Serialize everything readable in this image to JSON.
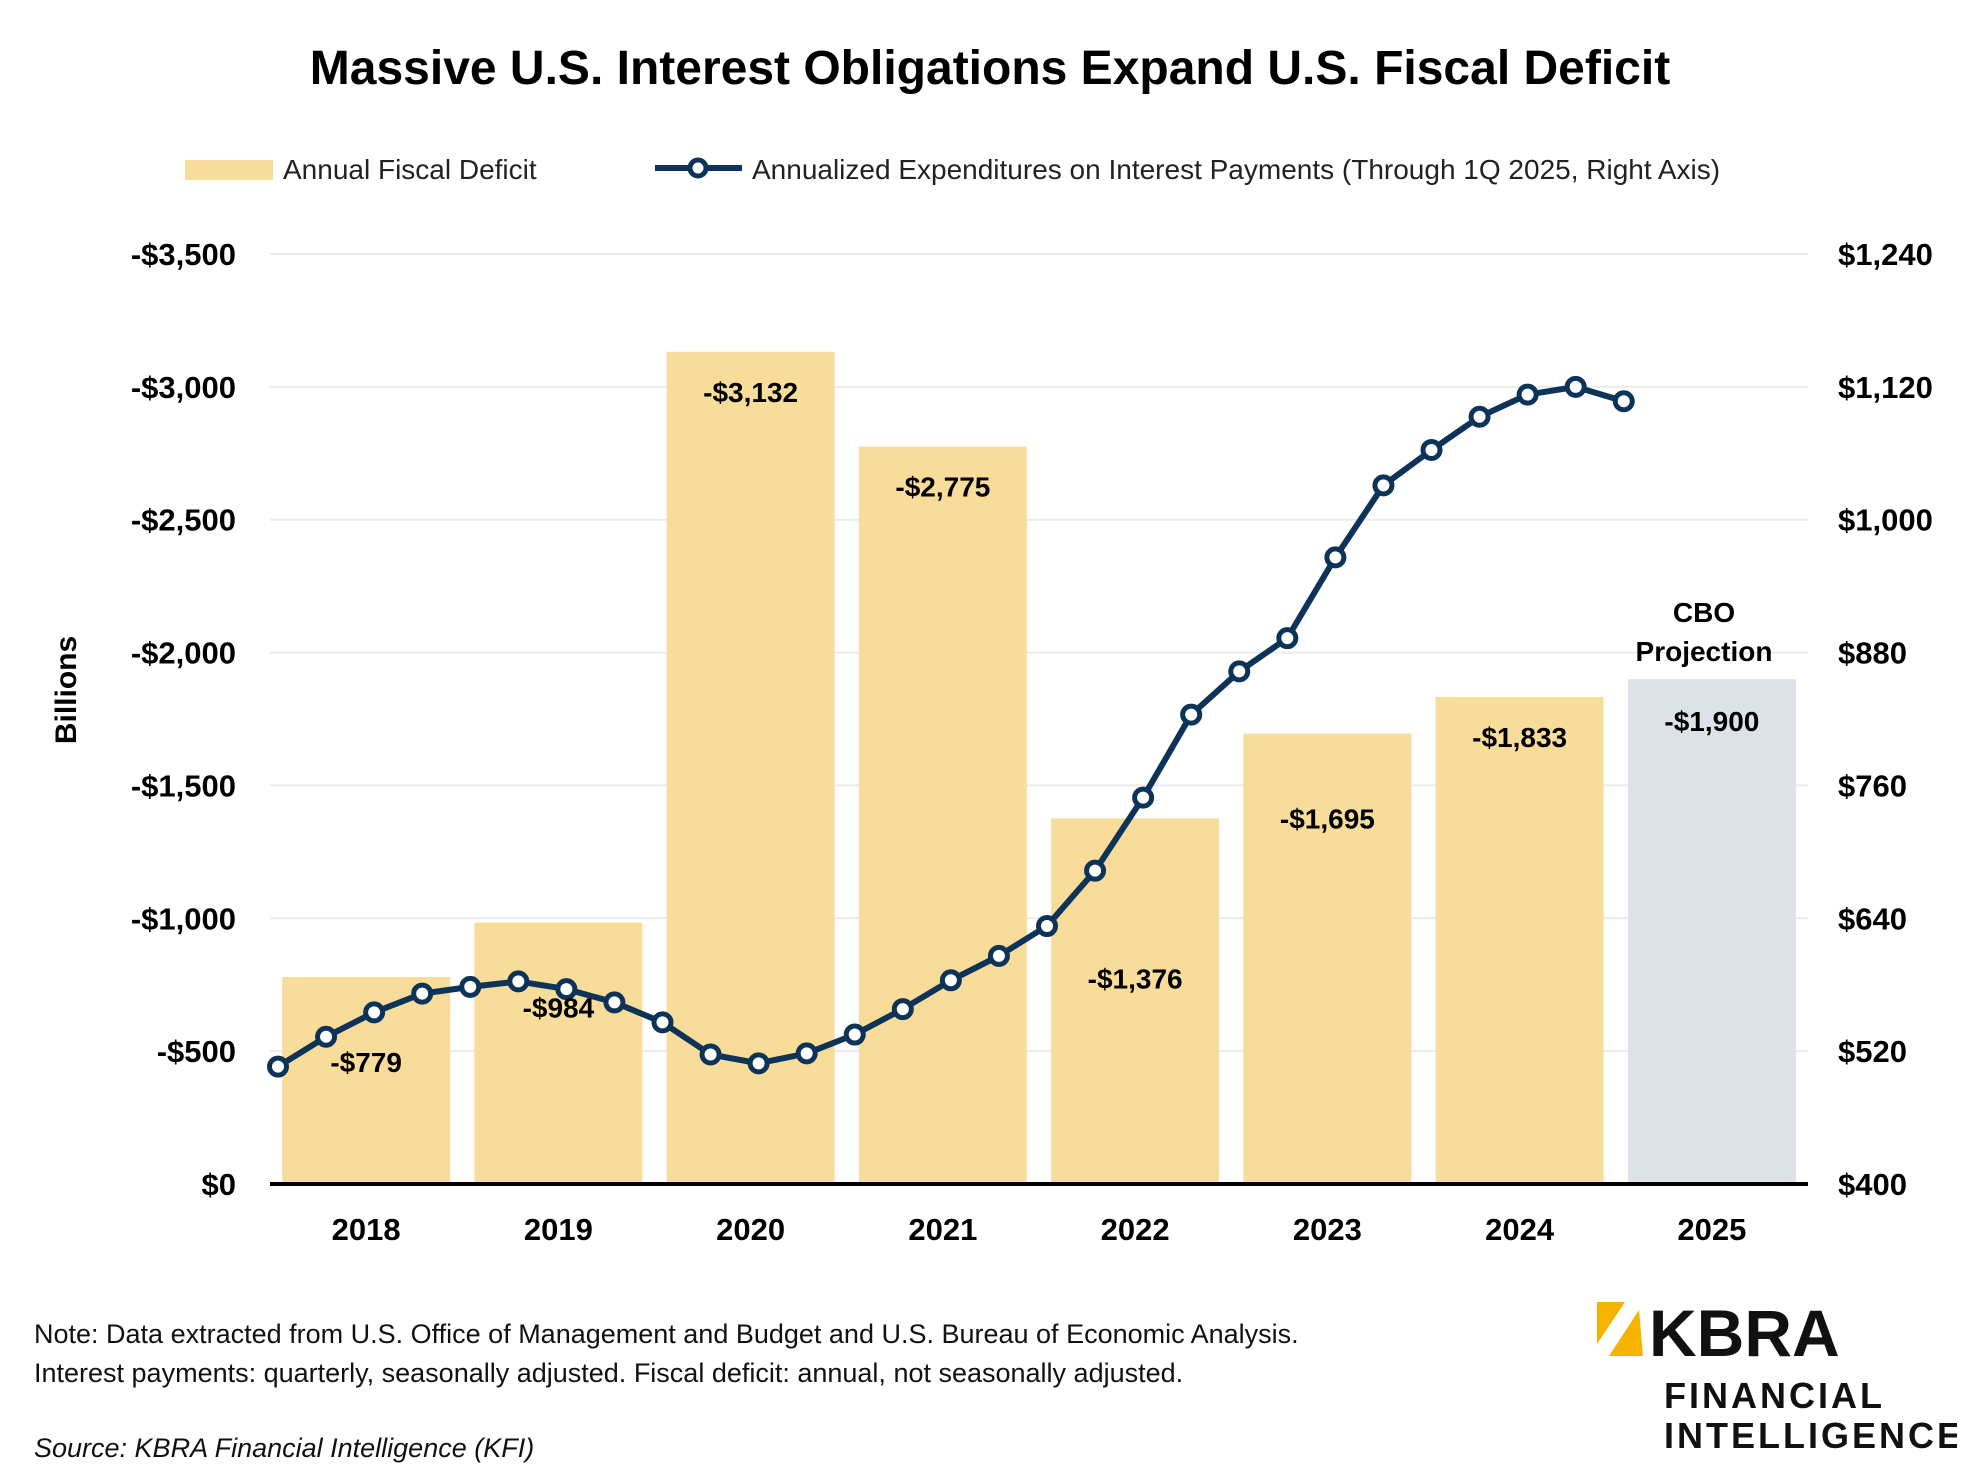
{
  "chart_data": {
    "type": "bar+line",
    "title": "Massive U.S. Interest Obligations Expand U.S. Fiscal Deficit",
    "legend": {
      "bar": "Annual Fiscal Deficit",
      "line": "Annualized Expenditures on Interest Payments (Through 1Q 2025, Right Axis)",
      "placement": "top"
    },
    "ylabel": "Billions",
    "y_left": {
      "ylim": [
        0,
        3500
      ],
      "ticks": [
        0,
        500,
        1000,
        1500,
        2000,
        2500,
        3000,
        3500
      ],
      "tick_labels": [
        "$0",
        "-$500",
        "-$1,000",
        "-$1,500",
        "-$2,000",
        "-$2,500",
        "-$3,000",
        "-$3,500"
      ]
    },
    "y_right": {
      "ylim": [
        400,
        1240
      ],
      "ticks": [
        400,
        520,
        640,
        760,
        880,
        1000,
        1120,
        1240
      ],
      "tick_labels": [
        "$400",
        "$520",
        "$640",
        "$760",
        "$880",
        "$1,000",
        "$1,120",
        "$1,240"
      ]
    },
    "categories": [
      "2018",
      "2019",
      "2020",
      "2021",
      "2022",
      "2023",
      "2024",
      "2025"
    ],
    "bars": {
      "values": [
        779,
        984,
        3132,
        2775,
        1376,
        1695,
        1833,
        1900
      ],
      "labels": [
        "-$779",
        "-$984",
        "-$3,132",
        "-$2,775",
        "-$1,376",
        "-$1,695",
        "-$1,833",
        "-$1,900"
      ],
      "color": "#F8DC9A",
      "projection_color": "#DDE2E9",
      "projection_index": 7
    },
    "line": {
      "color": "#0D3358",
      "values": [
        506,
        533,
        555,
        572,
        578,
        583,
        576,
        564,
        546,
        517,
        509,
        518,
        535,
        558,
        584,
        606,
        633,
        683,
        749,
        824,
        863,
        893,
        966,
        1031,
        1063,
        1093,
        1113,
        1120,
        1107
      ]
    },
    "annotation": {
      "line1": "CBO",
      "line2": "Projection"
    },
    "grid": true
  },
  "footer": {
    "note_line1": "Note: Data extracted from U.S. Office of Management and Budget and U.S. Bureau of Economic Analysis.",
    "note_line2": "Interest payments: quarterly, seasonally adjusted. Fiscal deficit: annual, not seasonally adjusted.",
    "source": "Source: KBRA Financial Intelligence (KFI)"
  },
  "logo": {
    "name": "KBRA",
    "line2": "FINANCIAL",
    "line3": "INTELLIGENCE",
    "accent_color": "#F5B300"
  }
}
